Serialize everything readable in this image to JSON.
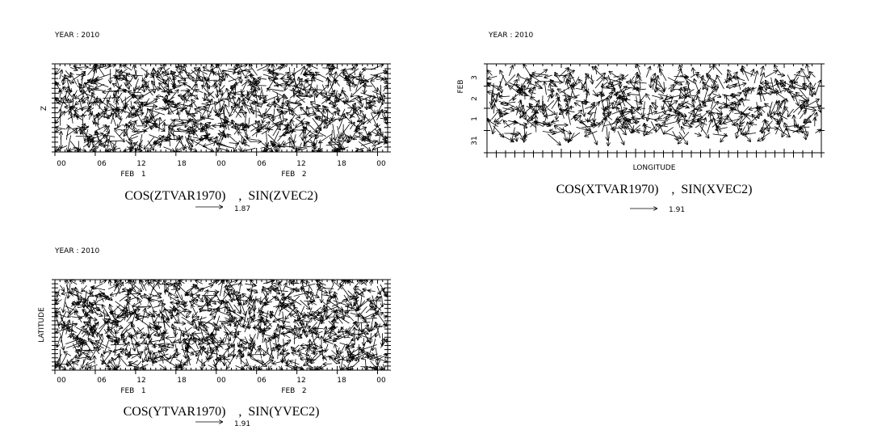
{
  "chart_data": [
    {
      "type": "vector",
      "year_label": "YEAR : 2010",
      "xlabel": "",
      "ylabel": "Z",
      "x_tick_labels": [
        "00",
        "06",
        "12",
        "18",
        "00",
        "06",
        "12",
        "18",
        "00"
      ],
      "x_day_labels": [
        "FEB   1",
        "FEB   2"
      ],
      "y_tick_labels": [],
      "title": "COS(ZTVAR1970)    ,  SIN(ZVEC2)",
      "reference_vector_label": "1.87",
      "vector_field": {
        "cols": 60,
        "rows": 15,
        "seed": 11
      }
    },
    {
      "type": "vector",
      "year_label": "YEAR : 2010",
      "xlabel": "LONGITUDE",
      "ylabel": "FEB",
      "x_tick_labels": [],
      "x_day_labels": [],
      "y_tick_labels": [
        "3",
        "2",
        "1",
        "31"
      ],
      "title": "COS(XTVAR1970)    ,  SIN(XVEC2)",
      "reference_vector_label": "1.91",
      "vector_field": {
        "cols": 60,
        "rows": 10,
        "seed": 23
      }
    },
    {
      "type": "vector",
      "year_label": "YEAR : 2010",
      "xlabel": "",
      "ylabel": "LATITUDE",
      "x_tick_labels": [
        "00",
        "06",
        "12",
        "18",
        "00",
        "06",
        "12",
        "18",
        "00"
      ],
      "x_day_labels": [
        "FEB   1",
        "FEB   2"
      ],
      "y_tick_labels": [],
      "title": "COS(YTVAR1970)    ,  SIN(YVEC2)",
      "reference_vector_label": "1.91",
      "vector_field": {
        "cols": 60,
        "rows": 16,
        "seed": 37
      }
    }
  ]
}
